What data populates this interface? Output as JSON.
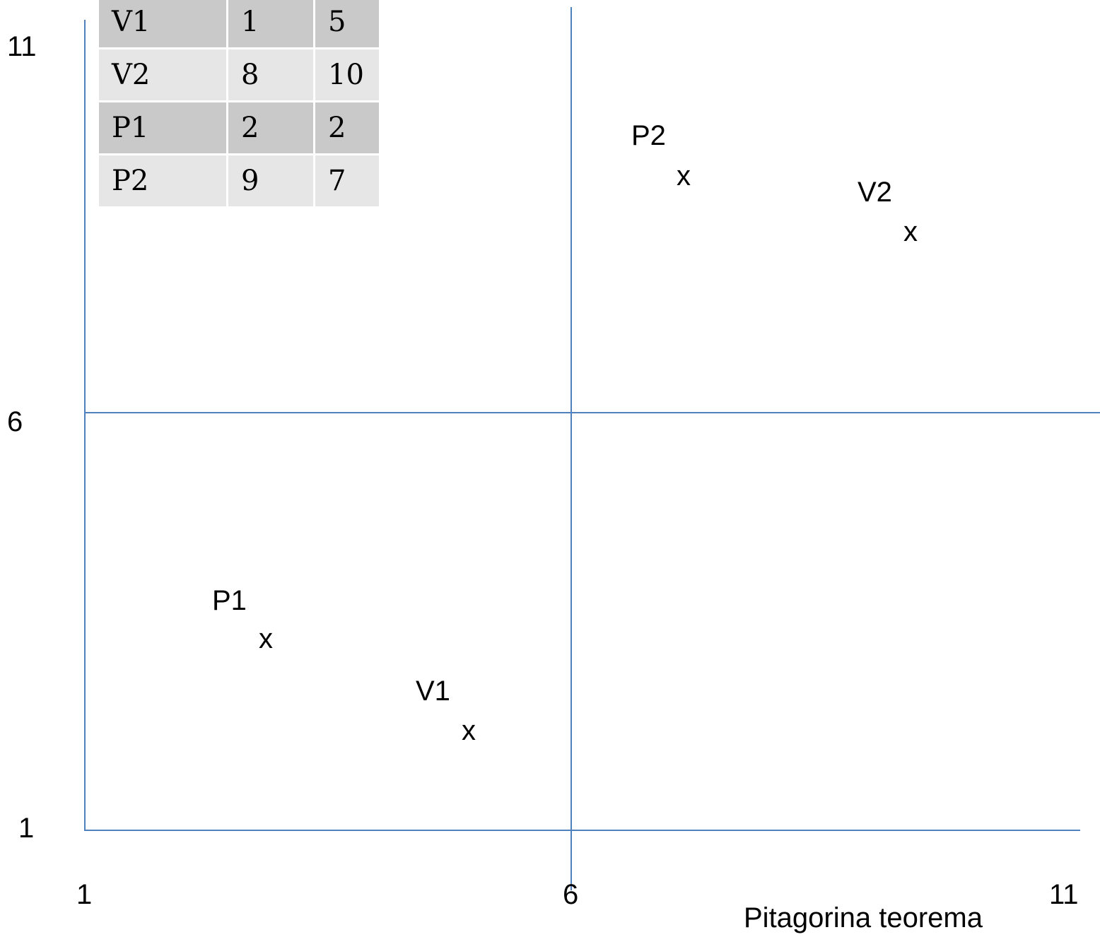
{
  "diagram": {
    "x_ticks": [
      "1",
      "6",
      "11"
    ],
    "y_ticks": [
      "11",
      "6",
      "1"
    ],
    "caption": "Pitagorina teorema",
    "table": {
      "rows": [
        [
          "V1",
          "1",
          "5"
        ],
        [
          "V2",
          "8",
          "10"
        ],
        [
          "P1",
          "2",
          "2"
        ],
        [
          "P2",
          "9",
          "7"
        ]
      ]
    },
    "points": [
      {
        "label": "P1",
        "mark": "x"
      },
      {
        "label": "V1",
        "mark": "x"
      },
      {
        "label": "P2",
        "mark": "x"
      },
      {
        "label": "V2",
        "mark": "x"
      }
    ],
    "line_color": "#4f81bd"
  }
}
